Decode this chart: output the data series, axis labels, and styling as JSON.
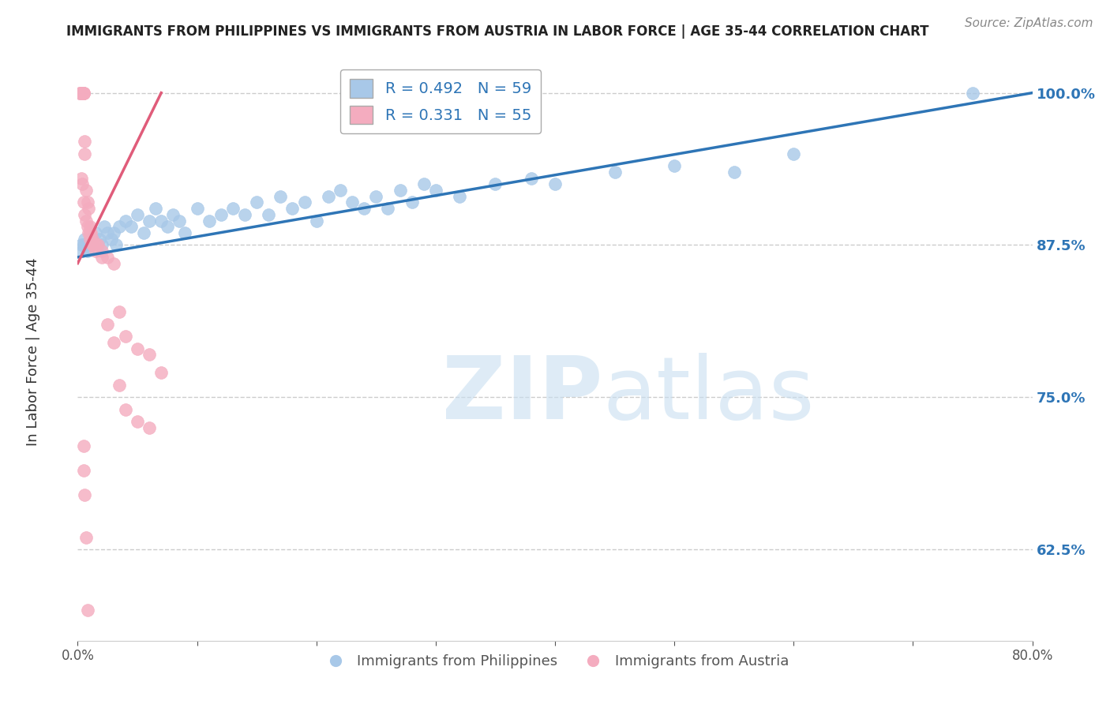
{
  "title": "IMMIGRANTS FROM PHILIPPINES VS IMMIGRANTS FROM AUSTRIA IN LABOR FORCE | AGE 35-44 CORRELATION CHART",
  "source": "Source: ZipAtlas.com",
  "xlim": [
    0.0,
    80.0
  ],
  "ylim": [
    55.0,
    103.0
  ],
  "ylabel_ticks": [
    62.5,
    75.0,
    87.5,
    100.0
  ],
  "ylabel_tick_labels": [
    "62.5%",
    "75.0%",
    "87.5%",
    "100.0%"
  ],
  "legend_r_blue": "R = 0.492",
  "legend_n_blue": "N = 59",
  "legend_r_pink": "R = 0.331",
  "legend_n_pink": "N = 55",
  "blue_color": "#A8C8E8",
  "pink_color": "#F4ACBF",
  "blue_line_color": "#2E75B6",
  "pink_line_color": "#E05C7A",
  "legend_text_color": "#2E75B6",
  "legend_label_blue": "Immigrants from Philippines",
  "legend_label_pink": "Immigrants from Austria",
  "blue_scatter_x": [
    0.3,
    0.4,
    0.5,
    0.6,
    0.7,
    0.8,
    1.0,
    1.0,
    1.2,
    1.5,
    1.8,
    2.0,
    2.2,
    2.5,
    2.8,
    3.0,
    3.2,
    3.5,
    4.0,
    4.5,
    5.0,
    5.5,
    6.0,
    6.5,
    7.0,
    7.5,
    8.0,
    8.5,
    9.0,
    10.0,
    11.0,
    12.0,
    13.0,
    14.0,
    15.0,
    16.0,
    17.0,
    18.0,
    19.0,
    20.0,
    21.0,
    22.0,
    23.0,
    24.0,
    25.0,
    26.0,
    27.0,
    28.0,
    29.0,
    30.0,
    32.0,
    35.0,
    38.0,
    40.0,
    45.0,
    50.0,
    55.0,
    60.0,
    75.0
  ],
  "blue_scatter_y": [
    87.5,
    87.0,
    87.5,
    88.0,
    87.5,
    87.0,
    87.5,
    88.0,
    88.0,
    88.5,
    88.0,
    87.5,
    89.0,
    88.5,
    88.0,
    88.5,
    87.5,
    89.0,
    89.5,
    89.0,
    90.0,
    88.5,
    89.5,
    90.5,
    89.5,
    89.0,
    90.0,
    89.5,
    88.5,
    90.5,
    89.5,
    90.0,
    90.5,
    90.0,
    91.0,
    90.0,
    91.5,
    90.5,
    91.0,
    89.5,
    91.5,
    92.0,
    91.0,
    90.5,
    91.5,
    90.5,
    92.0,
    91.0,
    92.5,
    92.0,
    91.5,
    92.5,
    93.0,
    92.5,
    93.5,
    94.0,
    93.5,
    95.0,
    100.0
  ],
  "pink_scatter_x": [
    0.2,
    0.2,
    0.3,
    0.3,
    0.3,
    0.4,
    0.4,
    0.4,
    0.5,
    0.5,
    0.5,
    0.5,
    0.5,
    0.6,
    0.6,
    0.7,
    0.8,
    0.9,
    1.0,
    1.0,
    1.1,
    1.2,
    1.3,
    1.5,
    1.7,
    2.0,
    2.5,
    3.0,
    3.5,
    4.0,
    5.0,
    6.0,
    7.0,
    0.3,
    0.4,
    0.5,
    0.6,
    0.7,
    0.8,
    0.9,
    1.0,
    1.2,
    1.5,
    2.0,
    2.5,
    3.0,
    3.5,
    4.0,
    5.0,
    6.0,
    0.5,
    0.5,
    0.6,
    0.7,
    0.8
  ],
  "pink_scatter_y": [
    100.0,
    100.0,
    100.0,
    100.0,
    100.0,
    100.0,
    100.0,
    100.0,
    100.0,
    100.0,
    100.0,
    100.0,
    100.0,
    96.0,
    95.0,
    92.0,
    91.0,
    90.5,
    89.0,
    88.5,
    88.5,
    88.0,
    87.5,
    87.5,
    87.5,
    87.0,
    86.5,
    86.0,
    82.0,
    80.0,
    79.0,
    78.5,
    77.0,
    93.0,
    92.5,
    91.0,
    90.0,
    89.5,
    89.0,
    88.5,
    88.0,
    87.5,
    87.0,
    86.5,
    81.0,
    79.5,
    76.0,
    74.0,
    73.0,
    72.5,
    71.0,
    69.0,
    67.0,
    63.5,
    57.5
  ],
  "pink_line_x": [
    0.0,
    7.0
  ],
  "pink_line_y": [
    86.0,
    100.0
  ],
  "blue_line_x": [
    0.0,
    80.0
  ],
  "blue_line_y": [
    86.5,
    100.0
  ]
}
